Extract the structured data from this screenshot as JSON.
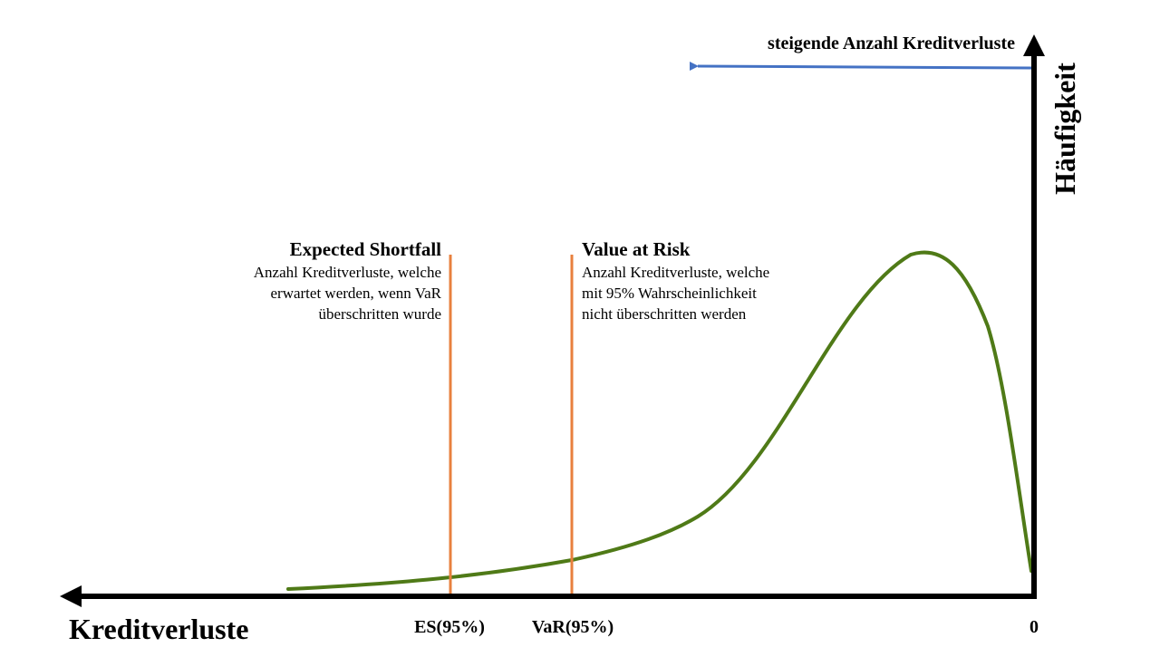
{
  "direction_label": "steigende Anzahl Kreditverluste",
  "y_axis_label": "Häufigkeit",
  "x_axis_label": "Kreditverluste",
  "x_origin_label": "0",
  "es": {
    "title": "Expected Shortfall",
    "description": [
      "Anzahl Kreditverluste, welche",
      "erwartet werden, wenn VaR",
      "überschritten wurde"
    ],
    "tick_label": "ES(95%)"
  },
  "var": {
    "title": "Value at Risk",
    "description": [
      "Anzahl Kreditverluste, welche",
      "mit 95% Wahrscheinlichkeit",
      "nicht überschritten werden"
    ],
    "tick_label": "VaR(95%)"
  },
  "colors": {
    "curve": "#4f7a17",
    "marker_lines": "#e8803e",
    "direction_arrow": "#4472c4",
    "axes": "#000000"
  }
}
